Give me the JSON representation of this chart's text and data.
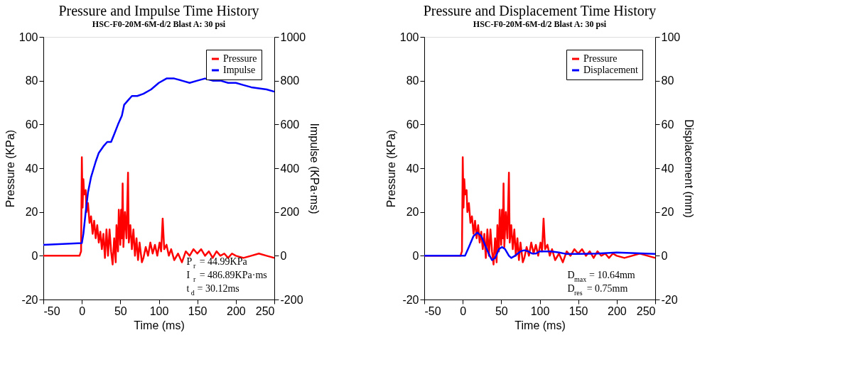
{
  "chart_data": [
    {
      "type": "line",
      "title": "Pressure and Impulse Time History",
      "subtitle": "HSC-F0-20M-6M-d/2  Blast A: 30 psi",
      "xlabel": "Time (ms)",
      "ylabel": "Pressure (KPa)",
      "y2label": "Impulse (KPa·ms)",
      "xlim": [
        -50,
        250
      ],
      "xticks": [
        -50,
        0,
        50,
        100,
        150,
        200,
        250
      ],
      "ylim": [
        -20,
        100
      ],
      "yticks": [
        -20,
        0,
        20,
        40,
        60,
        80,
        100
      ],
      "y2lim": [
        -200,
        1000
      ],
      "y2ticks": [
        -200,
        0,
        200,
        400,
        600,
        800,
        1000
      ],
      "grid": false,
      "legend": "top right",
      "marker": "none",
      "line_style": "solid",
      "annotations": [
        "P$_{r}$ = 44.99KPa",
        "I$_{r}$ = 486.89KPa·ms",
        "t$_{d}$ = 30.12ms"
      ],
      "series": [
        {
          "name": "Pressure",
          "color": "#ff0000",
          "x": [
            -50,
            -3,
            -1,
            0,
            1,
            2,
            3,
            5,
            6,
            8,
            10,
            12,
            14,
            16,
            18,
            20,
            22,
            24,
            26,
            28,
            30,
            32,
            34,
            36,
            38,
            40,
            42,
            44,
            45,
            47,
            48,
            50,
            51,
            52,
            53,
            54,
            56,
            58,
            60,
            61,
            63,
            65,
            67,
            69,
            71,
            73,
            75,
            78,
            80,
            83,
            86,
            89,
            92,
            95,
            98,
            101,
            103,
            105,
            107,
            110,
            113,
            116,
            120,
            125,
            130,
            135,
            140,
            145,
            150,
            155,
            160,
            165,
            170,
            175,
            180,
            185,
            190,
            195,
            200,
            210,
            220,
            230,
            240,
            250
          ],
          "values": [
            0,
            0,
            2,
            45,
            22,
            35,
            28,
            30,
            20,
            24,
            15,
            18,
            10,
            16,
            8,
            14,
            6,
            11,
            3,
            10,
            -1,
            12,
            0,
            12,
            2,
            -4,
            8,
            -3,
            14,
            2,
            21,
            5,
            21,
            8,
            33,
            4,
            20,
            8,
            38,
            6,
            14,
            3,
            12,
            0,
            8,
            -2,
            6,
            -3,
            -1,
            4,
            0,
            6,
            1,
            5,
            0,
            6,
            2,
            17,
            3,
            5,
            0,
            3,
            -2,
            1,
            -3,
            2,
            0,
            3,
            1,
            3,
            0,
            2,
            -1,
            2,
            0,
            1,
            -1,
            1,
            0,
            -1,
            0,
            1,
            0,
            -1
          ]
        },
        {
          "name": "Impulse",
          "color": "#0000ff",
          "axis": "y2",
          "x": [
            -50,
            0,
            2,
            5,
            8,
            12,
            18,
            22,
            28,
            33,
            38,
            42,
            47,
            52,
            55,
            60,
            65,
            72,
            80,
            90,
            100,
            110,
            120,
            130,
            140,
            150,
            160,
            170,
            180,
            190,
            200,
            210,
            220,
            230,
            240,
            250
          ],
          "values": [
            50,
            58,
            100,
            200,
            290,
            360,
            430,
            470,
            500,
            520,
            520,
            555,
            600,
            640,
            690,
            710,
            730,
            730,
            740,
            760,
            790,
            810,
            810,
            800,
            790,
            800,
            810,
            800,
            800,
            790,
            790,
            780,
            770,
            765,
            760,
            750
          ]
        }
      ]
    },
    {
      "type": "line",
      "title": "Pressure and Displacement Time History",
      "subtitle": "HSC-F0-20M-6M-d/2  Blast A: 30 psi",
      "xlabel": "Time (ms)",
      "ylabel": "Pressure (KPa)",
      "y2label": "Displacement (mm)",
      "xlim": [
        -50,
        250
      ],
      "xticks": [
        -50,
        0,
        50,
        100,
        150,
        200,
        250
      ],
      "ylim": [
        -20,
        100
      ],
      "yticks": [
        -20,
        0,
        20,
        40,
        60,
        80,
        100
      ],
      "y2lim": [
        -20,
        100
      ],
      "y2ticks": [
        -20,
        0,
        20,
        40,
        60,
        80,
        100
      ],
      "grid": false,
      "legend": "top right",
      "marker": "none",
      "line_style": "solid",
      "annotations": [
        "D$_{max}$ = 10.64mm",
        "D$_{res}$ = 0.75mm"
      ],
      "series": [
        {
          "name": "Pressure",
          "color": "#ff0000",
          "x": [
            -50,
            -3,
            -1,
            0,
            1,
            2,
            3,
            5,
            6,
            8,
            10,
            12,
            14,
            16,
            18,
            20,
            22,
            24,
            26,
            28,
            30,
            32,
            34,
            36,
            38,
            40,
            42,
            44,
            45,
            47,
            48,
            50,
            51,
            52,
            53,
            54,
            56,
            58,
            60,
            61,
            63,
            65,
            67,
            69,
            71,
            73,
            75,
            78,
            80,
            83,
            86,
            89,
            92,
            95,
            98,
            101,
            103,
            105,
            107,
            110,
            113,
            116,
            120,
            125,
            130,
            135,
            140,
            145,
            150,
            155,
            160,
            165,
            170,
            175,
            180,
            185,
            190,
            195,
            200,
            210,
            220,
            230,
            240,
            250
          ],
          "values": [
            0,
            0,
            2,
            45,
            22,
            35,
            28,
            30,
            20,
            24,
            15,
            18,
            10,
            16,
            8,
            14,
            6,
            11,
            3,
            10,
            -1,
            12,
            0,
            12,
            2,
            -4,
            8,
            -3,
            14,
            2,
            21,
            5,
            21,
            8,
            33,
            4,
            20,
            8,
            38,
            6,
            14,
            3,
            12,
            0,
            8,
            -2,
            6,
            -3,
            -1,
            4,
            0,
            6,
            1,
            5,
            0,
            6,
            2,
            17,
            3,
            5,
            0,
            3,
            -2,
            1,
            -3,
            2,
            0,
            3,
            1,
            3,
            0,
            2,
            -1,
            2,
            0,
            1,
            -1,
            1,
            0,
            -1,
            0,
            1,
            0,
            -1
          ]
        },
        {
          "name": "Displacement",
          "color": "#0000ff",
          "axis": "y2",
          "x": [
            -50,
            0,
            3,
            8,
            14,
            19,
            24,
            30,
            35,
            38,
            42,
            47,
            51,
            55,
            60,
            63,
            68,
            75,
            80,
            85,
            90,
            95,
            100,
            105,
            115,
            125,
            135,
            150,
            175,
            200,
            225,
            250
          ],
          "values": [
            0,
            0,
            0,
            4,
            9,
            10.6,
            9,
            4,
            0,
            -2,
            -1,
            3,
            4,
            3,
            0,
            -1,
            0,
            2,
            2.5,
            2,
            1,
            1,
            2,
            2,
            2,
            1.5,
            0.8,
            0.8,
            1,
            1.5,
            1.2,
            0.8
          ]
        }
      ]
    }
  ]
}
